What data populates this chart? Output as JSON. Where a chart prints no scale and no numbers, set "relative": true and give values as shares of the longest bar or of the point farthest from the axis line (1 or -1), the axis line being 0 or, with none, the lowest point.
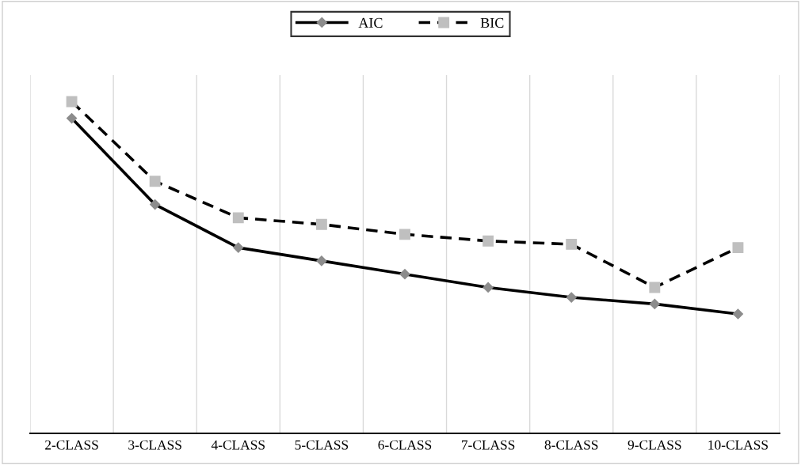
{
  "chart_data": {
    "type": "line",
    "relative": true,
    "categories": [
      "2-CLASS",
      "3-CLASS",
      "4-CLASS",
      "5-CLASS",
      "6-CLASS",
      "7-CLASS",
      "8-CLASS",
      "9-CLASS",
      "10-CLASS"
    ],
    "series": [
      {
        "name": "AIC",
        "color": "#8c8c8c",
        "marker": "diamond",
        "line_style": "solid",
        "values": [
          0.95,
          0.69,
          0.56,
          0.52,
          0.48,
          0.44,
          0.41,
          0.39,
          0.36
        ]
      },
      {
        "name": "BIC",
        "color": "#bfbfbf",
        "marker": "square",
        "line_style": "dashed",
        "values": [
          1.0,
          0.76,
          0.65,
          0.63,
          0.6,
          0.58,
          0.57,
          0.44,
          0.56
        ]
      }
    ],
    "grid": "x",
    "legend": "top"
  }
}
